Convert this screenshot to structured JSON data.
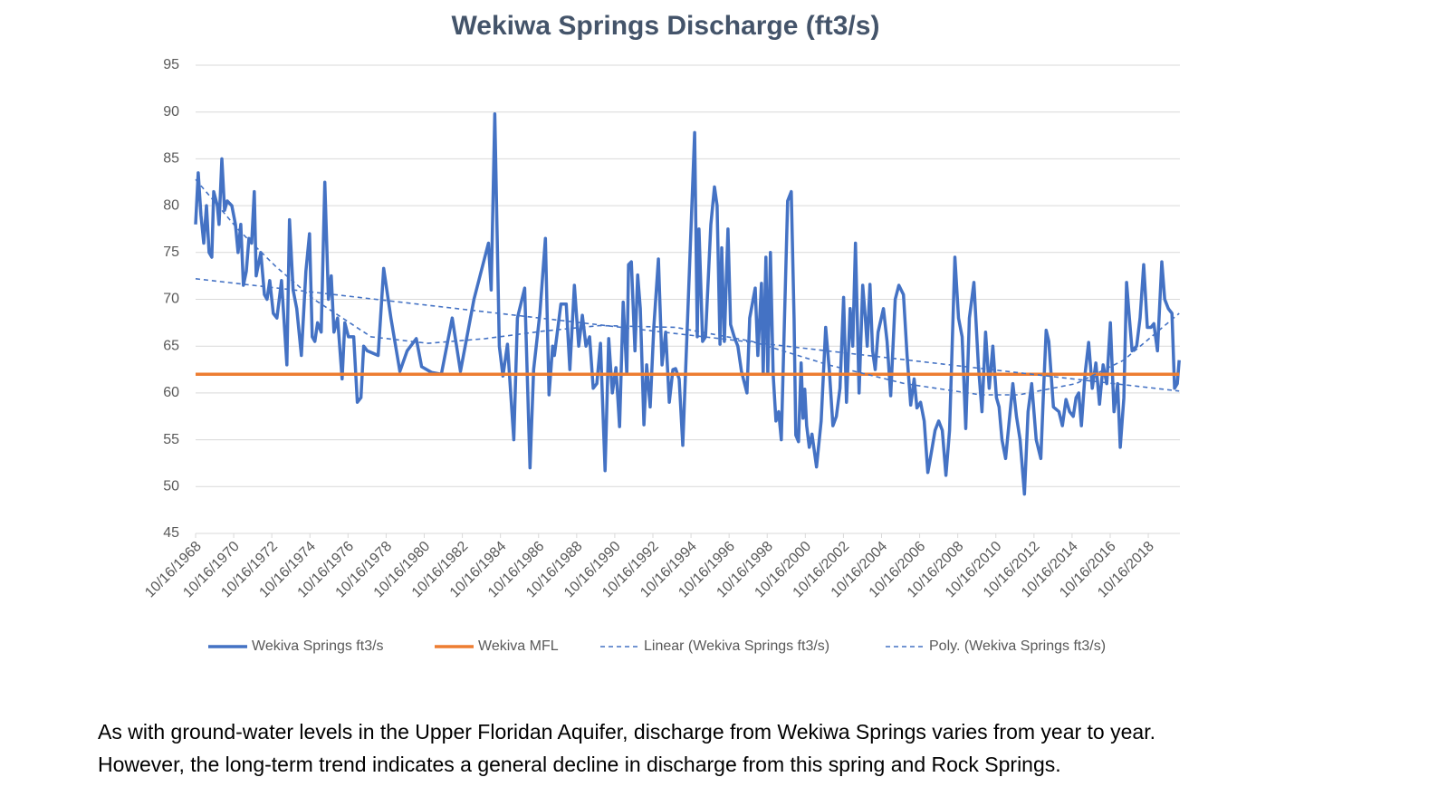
{
  "chart_data": {
    "type": "line",
    "title": "Wekiwa Springs Discharge (ft3/s)",
    "xlim": [
      1968.79,
      2020.45
    ],
    "ylim": [
      45,
      95
    ],
    "yticks": [
      45,
      50,
      55,
      60,
      65,
      70,
      75,
      80,
      85,
      90,
      95
    ],
    "xticks": [
      {
        "value": 1968.79,
        "label": "10/16/1968"
      },
      {
        "value": 1970.79,
        "label": "10/16/1970"
      },
      {
        "value": 1972.79,
        "label": "10/16/1972"
      },
      {
        "value": 1974.79,
        "label": "10/16/1974"
      },
      {
        "value": 1976.79,
        "label": "10/16/1976"
      },
      {
        "value": 1978.79,
        "label": "10/16/1978"
      },
      {
        "value": 1980.79,
        "label": "10/16/1980"
      },
      {
        "value": 1982.79,
        "label": "10/16/1982"
      },
      {
        "value": 1984.79,
        "label": "10/16/1984"
      },
      {
        "value": 1986.79,
        "label": "10/16/1986"
      },
      {
        "value": 1988.79,
        "label": "10/16/1988"
      },
      {
        "value": 1990.79,
        "label": "10/16/1990"
      },
      {
        "value": 1992.79,
        "label": "10/16/1992"
      },
      {
        "value": 1994.79,
        "label": "10/16/1994"
      },
      {
        "value": 1996.79,
        "label": "10/16/1996"
      },
      {
        "value": 1998.79,
        "label": "10/16/1998"
      },
      {
        "value": 2000.79,
        "label": "10/16/2000"
      },
      {
        "value": 2002.79,
        "label": "10/16/2002"
      },
      {
        "value": 2004.79,
        "label": "10/16/2004"
      },
      {
        "value": 2006.79,
        "label": "10/16/2006"
      },
      {
        "value": 2008.79,
        "label": "10/16/2008"
      },
      {
        "value": 2010.79,
        "label": "10/16/2010"
      },
      {
        "value": 2012.79,
        "label": "10/16/2012"
      },
      {
        "value": 2014.79,
        "label": "10/16/2014"
      },
      {
        "value": 2016.79,
        "label": "10/16/2016"
      },
      {
        "value": 2018.79,
        "label": "10/16/2018"
      }
    ],
    "grid": true,
    "legend": "bottom",
    "series": [
      {
        "name": "Wekiva Springs ft3/s",
        "color": "#4472c4",
        "dashed": false,
        "width": 3.5,
        "x": [
          1968.79,
          1968.93,
          1969.07,
          1969.22,
          1969.36,
          1969.5,
          1969.64,
          1969.74,
          1969.93,
          1970.02,
          1970.17,
          1970.31,
          1970.45,
          1970.69,
          1970.88,
          1971.02,
          1971.16,
          1971.3,
          1971.45,
          1971.59,
          1971.73,
          1971.87,
          1971.97,
          1972.21,
          1972.4,
          1972.54,
          1972.68,
          1972.87,
          1973.06,
          1973.3,
          1973.58,
          1973.72,
          1973.91,
          1974.1,
          1974.34,
          1974.58,
          1974.77,
          1974.91,
          1975.05,
          1975.19,
          1975.38,
          1975.57,
          1975.76,
          1975.91,
          1976.05,
          1976.24,
          1976.48,
          1976.62,
          1976.81,
          1977.09,
          1977.28,
          1977.47,
          1977.61,
          1977.8,
          1978.37,
          1978.66,
          1979.04,
          1979.51,
          1979.89,
          1980.37,
          1980.65,
          1981.17,
          1981.69,
          1982.26,
          1982.69,
          1983.4,
          1984.16,
          1984.3,
          1984.49,
          1984.73,
          1984.92,
          1985.16,
          1985.49,
          1985.68,
          1986.06,
          1986.34,
          1986.53,
          1986.86,
          1987.15,
          1987.34,
          1987.53,
          1987.62,
          1987.96,
          1988.24,
          1988.43,
          1988.67,
          1988.9,
          1989.09,
          1989.28,
          1989.47,
          1989.66,
          1989.85,
          1990.04,
          1990.28,
          1990.47,
          1990.66,
          1990.85,
          1991.04,
          1991.23,
          1991.42,
          1991.51,
          1991.66,
          1991.85,
          1991.99,
          1992.13,
          1992.32,
          1992.46,
          1992.65,
          1992.84,
          1993.08,
          1993.27,
          1993.46,
          1993.65,
          1993.84,
          1993.98,
          1994.17,
          1994.36,
          1994.98,
          1995.12,
          1995.21,
          1995.4,
          1995.55,
          1995.83,
          1996.02,
          1996.16,
          1996.31,
          1996.4,
          1996.54,
          1996.73,
          1996.87,
          1997.06,
          1997.25,
          1997.44,
          1997.73,
          1997.87,
          1998.16,
          1998.3,
          1998.49,
          1998.58,
          1998.72,
          1998.82,
          1998.96,
          1999.1,
          1999.25,
          1999.39,
          1999.53,
          1999.67,
          1999.86,
          2000.05,
          2000.2,
          2000.29,
          2000.43,
          2000.57,
          2000.67,
          2000.76,
          2000.86,
          2001.0,
          2001.14,
          2001.38,
          2001.62,
          2001.86,
          2002.05,
          2002.24,
          2002.42,
          2002.61,
          2002.8,
          2002.95,
          2003.14,
          2003.28,
          2003.42,
          2003.61,
          2003.8,
          2003.94,
          2004.04,
          2004.18,
          2004.32,
          2004.46,
          2004.61,
          2004.89,
          2005.08,
          2005.27,
          2005.51,
          2005.7,
          2005.94,
          2006.13,
          2006.32,
          2006.5,
          2006.65,
          2006.84,
          2007.03,
          2007.22,
          2007.41,
          2007.6,
          2007.79,
          2007.98,
          2008.17,
          2008.36,
          2008.64,
          2008.83,
          2009.02,
          2009.21,
          2009.4,
          2009.64,
          2009.87,
          2010.06,
          2010.25,
          2010.44,
          2010.63,
          2010.82,
          2010.96,
          2011.11,
          2011.3,
          2011.49,
          2011.68,
          2011.87,
          2012.06,
          2012.29,
          2012.48,
          2012.67,
          2012.91,
          2013.15,
          2013.29,
          2013.43,
          2013.57,
          2013.81,
          2014.1,
          2014.28,
          2014.47,
          2014.66,
          2014.85,
          2015.0,
          2015.14,
          2015.28,
          2015.47,
          2015.66,
          2015.85,
          2016.04,
          2016.23,
          2016.42,
          2016.61,
          2016.8,
          2016.99,
          2017.18,
          2017.32,
          2017.51,
          2017.65,
          2017.8,
          2017.94,
          2018.18,
          2018.36,
          2018.55,
          2018.74,
          2018.93,
          2019.08,
          2019.27,
          2019.5,
          2019.65,
          2019.84,
          2020.03,
          2020.17,
          2020.31,
          2020.41
        ],
        "values": [
          78,
          83.5,
          79,
          76,
          80,
          75,
          74.5,
          81.5,
          80,
          78,
          85,
          79.5,
          80.5,
          80,
          78,
          75,
          78,
          71.5,
          73,
          76.5,
          76,
          81.5,
          72.5,
          75,
          70.5,
          70,
          72,
          68.5,
          68,
          72,
          63,
          78.5,
          71,
          69,
          64,
          73,
          77,
          66,
          65.5,
          67.5,
          66.5,
          82.5,
          70,
          72.5,
          66.5,
          68,
          61.5,
          67.5,
          66,
          66,
          59,
          59.5,
          65,
          64.5,
          64,
          73.3,
          68,
          62.3,
          64.5,
          65.8,
          62.8,
          62.2,
          62,
          68,
          62.3,
          70,
          76,
          71,
          89.8,
          65,
          61.8,
          65.2,
          55,
          68,
          71.2,
          52,
          62.5,
          68.5,
          76.5,
          59.8,
          65,
          64,
          69.5,
          69.5,
          62.5,
          71.5,
          65,
          68.3,
          65,
          66,
          60.5,
          61,
          65.3,
          51.7,
          65.8,
          60,
          62.7,
          56.4,
          69.7,
          62,
          73.7,
          74,
          64.5,
          72.6,
          69,
          56.6,
          63,
          58.5,
          67,
          74.3,
          63,
          66.5,
          59,
          62.5,
          62.6,
          61.5,
          54.4,
          87.8,
          66,
          77.5,
          65.5,
          66,
          78,
          82,
          80,
          65.2,
          75.5,
          65.5,
          77.5,
          67.3,
          66,
          65,
          62.3,
          60,
          68,
          71.2,
          64,
          71.7,
          62,
          74.5,
          62,
          75,
          62,
          57,
          58,
          55,
          66,
          80.5,
          81.5,
          68,
          55.5,
          54.8,
          63.2,
          57.3,
          60.4,
          56.5,
          54.2,
          55.6,
          52.1,
          57,
          67,
          62.5,
          56.5,
          57.5,
          60.5,
          70.2,
          59,
          69,
          65,
          76,
          60,
          71.5,
          68,
          65,
          71.6,
          64.5,
          62.5,
          66.5,
          69,
          65.5,
          59.7,
          70,
          71.5,
          70.5,
          64,
          58.7,
          61.5,
          58.4,
          59,
          57,
          51.5,
          53.7,
          56,
          57,
          56,
          51.2,
          56,
          74.5,
          68,
          66,
          56.2,
          68,
          71.8,
          63,
          58,
          66.5,
          60.5,
          65,
          59.5,
          58.5,
          55,
          53,
          57,
          61,
          57.5,
          55,
          49.2,
          58,
          61,
          55,
          53,
          60,
          66.7,
          65.5,
          58.5,
          58,
          56.5,
          59.3,
          58,
          57.5,
          59.5,
          60,
          56.5,
          62,
          65.4,
          60.5,
          63.2,
          58.8,
          63,
          61,
          67.5,
          58,
          61,
          54.2,
          59.5,
          71.8,
          68,
          64.5,
          65,
          68,
          73.7,
          67,
          67,
          67.4,
          64.5,
          74,
          70,
          69,
          68.5,
          60.5,
          61,
          63.5
        ]
      },
      {
        "name": "Wekiva MFL",
        "color": "#ed7d31",
        "dashed": false,
        "width": 3.5,
        "x": [
          1968.79,
          2020.41
        ],
        "values": [
          62,
          62
        ]
      },
      {
        "name": "Linear (Wekiva Springs ft3/s)",
        "color": "#4472c4",
        "dashed": true,
        "width": 1.6,
        "x": [
          1968.79,
          2020.41
        ],
        "values": [
          72.2,
          60.2
        ]
      },
      {
        "name": "Poly. (Wekiva Springs ft3/s)",
        "color": "#4472c4",
        "dashed": true,
        "width": 1.6,
        "x": [
          1968.79,
          1971,
          1973,
          1975,
          1978,
          1981,
          1984,
          1987,
          1990,
          1994,
          1998,
          2002,
          2006,
          2010,
          2012,
          2015,
          2017.5,
          2020.41
        ],
        "values": [
          82.8,
          77.5,
          73.5,
          70,
          66,
          65.3,
          65.8,
          66.6,
          67.2,
          67,
          65.5,
          63,
          61,
          59.8,
          59.8,
          61,
          63.5,
          68.5
        ]
      }
    ]
  },
  "caption": {
    "lines": [
      "As with ground-water levels in the Upper Floridan Aquifer, discharge from Wekiwa Springs varies from year to year.",
      "However, the long-term trend indicates a general decline in discharge from this spring and Rock Springs."
    ]
  }
}
